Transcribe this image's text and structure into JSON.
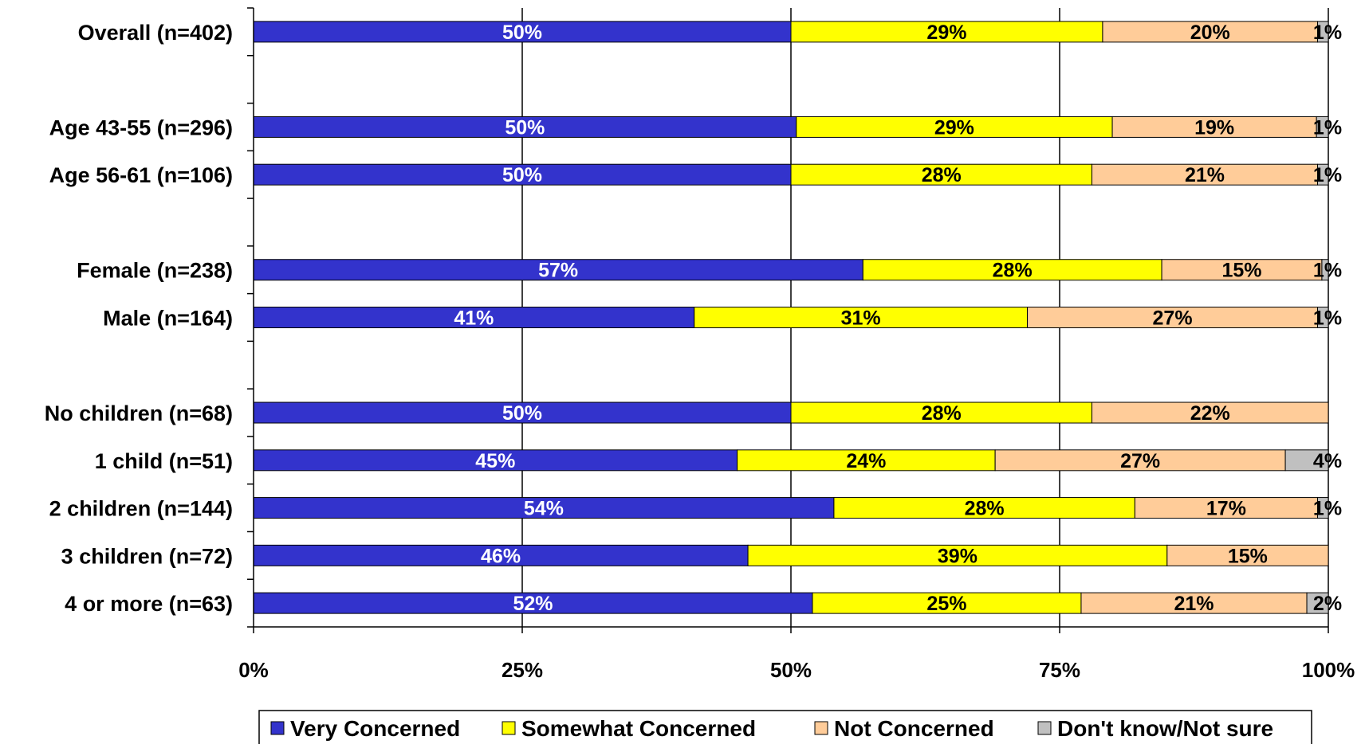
{
  "chart_data": {
    "type": "bar",
    "orientation": "horizontal",
    "stacked": true,
    "categories": [
      "Overall (n=402)",
      "",
      "Age 43-55 (n=296)",
      "Age 56-61 (n=106)",
      "",
      "Female (n=238)",
      "Male (n=164)",
      "",
      "No children (n=68)",
      "1 child (n=51)",
      "2 children (n=144)",
      "3 children (n=72)",
      "4 or more (n=63)"
    ],
    "series": [
      {
        "name": "Very Concerned",
        "color": "#3333CC",
        "label_color": "#FFFFFF",
        "values": [
          50,
          null,
          50.5,
          50,
          null,
          56.7,
          41,
          null,
          50,
          45,
          54,
          46,
          52
        ],
        "labels": [
          "50%",
          null,
          "50%",
          "50%",
          null,
          "57%",
          "41%",
          null,
          "50%",
          "45%",
          "54%",
          "46%",
          "52%"
        ]
      },
      {
        "name": "Somewhat Concerned",
        "color": "#FFFF00",
        "label_color": "#000000",
        "values": [
          29,
          null,
          29.4,
          28,
          null,
          27.8,
          31,
          null,
          28,
          24,
          28,
          39,
          25
        ],
        "labels": [
          "29%",
          null,
          "29%",
          "28%",
          null,
          "28%",
          "31%",
          null,
          "28%",
          "24%",
          "28%",
          "39%",
          "25%"
        ]
      },
      {
        "name": "Not Concerned",
        "color": "#FFCC99",
        "label_color": "#000000",
        "values": [
          20,
          null,
          19,
          21,
          null,
          14.9,
          27,
          null,
          22,
          27,
          17,
          15,
          21
        ],
        "labels": [
          "20%",
          null,
          "19%",
          "21%",
          null,
          "15%",
          "27%",
          null,
          "22%",
          "27%",
          "17%",
          "15%",
          "21%"
        ]
      },
      {
        "name": "Don't know/Not sure",
        "color": "#C0C0C0",
        "label_color": "#000000",
        "values": [
          1,
          null,
          1.1,
          1,
          null,
          0.6,
          1,
          null,
          0,
          4,
          1,
          0,
          2
        ],
        "labels": [
          "1%",
          null,
          "1%",
          "1%",
          null,
          "1%",
          "1%",
          null,
          null,
          "4%",
          "1%",
          null,
          "2%"
        ]
      }
    ],
    "x_ticks": [
      "0%",
      "25%",
      "50%",
      "75%",
      "100%"
    ],
    "xlim": [
      0,
      100
    ],
    "grid": true,
    "legend_position": "bottom"
  }
}
